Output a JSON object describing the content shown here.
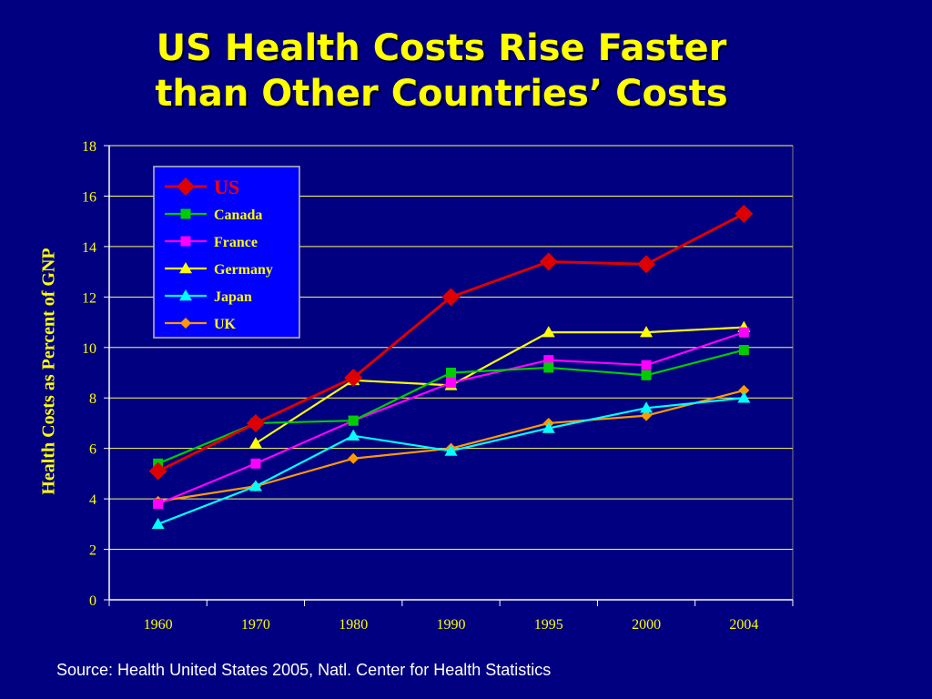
{
  "slide": {
    "title_line1": "US Health Costs Rise Faster",
    "title_line2": "than Other Countries’ Costs",
    "source": "Source: Health United States 2005, Natl. Center for Health Statistics"
  },
  "colors": {
    "background": "#000080",
    "text": "#FFFF00",
    "grid": "#FFFF66"
  },
  "chart_data": {
    "type": "line",
    "title": "",
    "xlabel": "",
    "ylabel": "Health Costs as Percent of GNP",
    "categories": [
      "1960",
      "1970",
      "1980",
      "1990",
      "1995",
      "2000",
      "2004"
    ],
    "ylim": [
      0,
      18
    ],
    "yticks": [
      0,
      2,
      4,
      6,
      8,
      10,
      12,
      14,
      16,
      18
    ],
    "grid": "horizontal",
    "legend_position": "top-left",
    "series": [
      {
        "name": "US",
        "color": "#DD0000",
        "marker": "diamond",
        "values": [
          5.1,
          7.0,
          8.8,
          12.0,
          13.4,
          13.3,
          15.3
        ]
      },
      {
        "name": "Canada",
        "color": "#00CC00",
        "marker": "square",
        "values": [
          5.4,
          7.0,
          7.1,
          9.0,
          9.2,
          8.9,
          9.9
        ]
      },
      {
        "name": "France",
        "color": "#FF00FF",
        "marker": "square",
        "values": [
          3.8,
          5.4,
          7.1,
          8.6,
          9.5,
          9.3,
          10.6
        ]
      },
      {
        "name": "Germany",
        "color": "#FFFF00",
        "marker": "triangle",
        "values": [
          null,
          6.2,
          8.7,
          8.5,
          10.6,
          10.6,
          10.8
        ]
      },
      {
        "name": "Japan",
        "color": "#00FFFF",
        "marker": "triangle",
        "values": [
          3.0,
          4.5,
          6.5,
          5.9,
          6.8,
          7.6,
          8.0
        ]
      },
      {
        "name": "UK",
        "color": "#FF9900",
        "marker": "diamond-small",
        "values": [
          3.9,
          4.5,
          5.6,
          6.0,
          7.0,
          7.3,
          8.3
        ]
      }
    ]
  }
}
